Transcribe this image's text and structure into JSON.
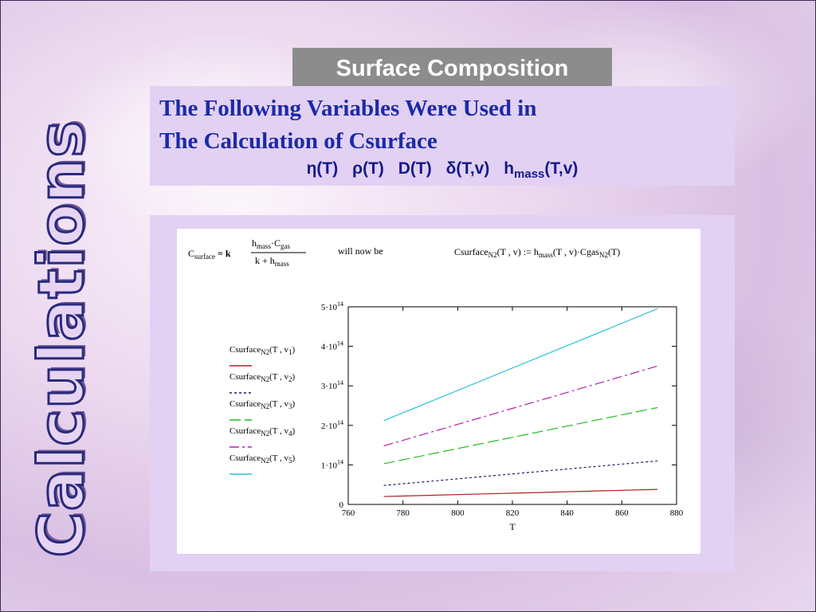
{
  "side_title": "Calculations",
  "banner_title": "Surface Composition",
  "heading_line1": "The Following Variables Were Used in",
  "heading_line2": "The Calculation of Csurface",
  "variables": [
    {
      "base": "η(T)"
    },
    {
      "base": "ρ(T)"
    },
    {
      "base": "D(T)"
    },
    {
      "base": "δ(T,v)"
    },
    {
      "base": "h",
      "sub": "mass",
      "suffix": "(T,v)"
    }
  ],
  "formula": {
    "lhs": "C",
    "lhs_sub": "surface",
    "eq": " = k",
    "num": "h",
    "num_sub": "mass",
    "num_mid": "·C",
    "num_sub2": "gas",
    "den": "k + h",
    "den_sub": "mass",
    "will_now_be": "will now be",
    "rhs_a": "Csurface",
    "rhs_sub": "N2",
    "rhs_b": "(T , v) := h",
    "rhs_sub2": "mass",
    "rhs_c": "(T , v)·Cgas",
    "rhs_sub3": "N2",
    "rhs_d": "(T)"
  },
  "colors": {
    "title_stroke": "#2a2a7c",
    "heading": "#1c2aa8",
    "banner": "#8c8c8c",
    "panel": "#e2d1f3"
  },
  "chart_data": {
    "type": "line",
    "xlabel": "T",
    "ylabel": "",
    "xlim": [
      760,
      880
    ],
    "ylim": [
      0,
      500000000000000.0
    ],
    "x_ticks": [
      760,
      780,
      800,
      820,
      840,
      860,
      880
    ],
    "y_ticks": [
      {
        "value": 0,
        "label": "0",
        "exp": ""
      },
      {
        "value": 100000000000000.0,
        "label": "1·10",
        "exp": "14"
      },
      {
        "value": 200000000000000.0,
        "label": "2·10",
        "exp": "14"
      },
      {
        "value": 300000000000000.0,
        "label": "3·10",
        "exp": "14"
      },
      {
        "value": 400000000000000.0,
        "label": "4·10",
        "exp": "14"
      },
      {
        "value": 500000000000000.0,
        "label": "5·10",
        "exp": "14"
      }
    ],
    "grid": false,
    "legend_position": "left",
    "x": [
      773,
      873
    ],
    "series": [
      {
        "name": "Csurface",
        "name_sub": "N2",
        "arg": "(T , v",
        "arg_sub": "1",
        "arg_end": ")",
        "values": [
          20000000000000.0,
          38000000000000.0
        ],
        "color": "#b02020",
        "dash": ""
      },
      {
        "name": "Csurface",
        "name_sub": "N2",
        "arg": "(T , v",
        "arg_sub": "2",
        "arg_end": ")",
        "values": [
          48000000000000.0,
          110000000000000.0
        ],
        "color": "#1a1a6e",
        "dash": "3,3"
      },
      {
        "name": "Csurface",
        "name_sub": "N2",
        "arg": "(T , v",
        "arg_sub": "3",
        "arg_end": ")",
        "values": [
          103000000000000.0,
          245000000000000.0
        ],
        "color": "#22bb22",
        "dash": "14,5"
      },
      {
        "name": "Csurface",
        "name_sub": "N2",
        "arg": "(T , v",
        "arg_sub": "4",
        "arg_end": ")",
        "values": [
          148000000000000.0,
          350000000000000.0
        ],
        "color": "#b020b0",
        "dash": "12,4,3,4"
      },
      {
        "name": "Csurface",
        "name_sub": "N2",
        "arg": "(T , v",
        "arg_sub": "5",
        "arg_end": ")",
        "values": [
          212000000000000.0,
          495000000000000.0
        ],
        "color": "#2ec0d8",
        "dash": ""
      }
    ]
  }
}
